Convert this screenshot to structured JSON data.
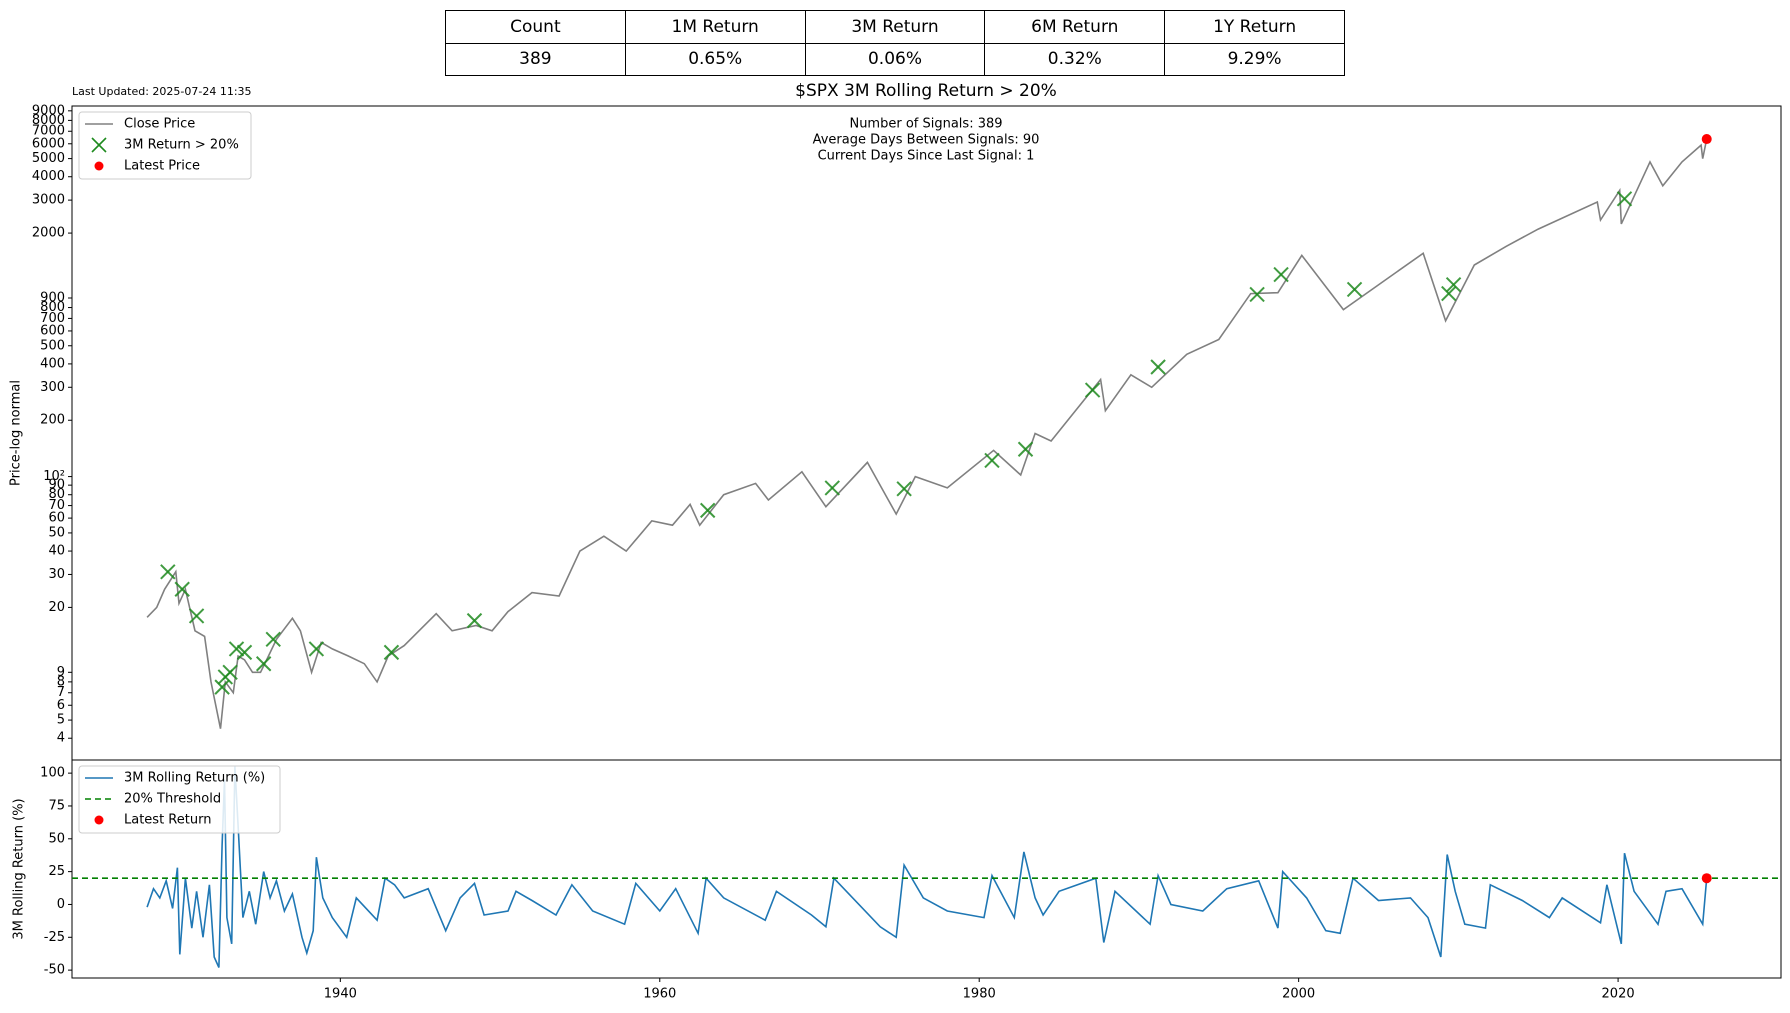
{
  "table": {
    "header": [
      "Count",
      "1M Return",
      "3M Return",
      "6M Return",
      "1Y Return"
    ],
    "rows": [
      [
        "389",
        "0.65%",
        "0.06%",
        "0.32%",
        "9.29%"
      ]
    ]
  },
  "last_updated": "Last Updated: 2025-07-24 11:35",
  "chart_data": [
    {
      "type": "line",
      "title": "$SPX 3M Rolling Return > 20%",
      "annotations": [
        "Number of Signals: 389",
        "Average Days Between Signals: 90",
        "Current Days Since Last Signal: 1"
      ],
      "ylabel": "Price-log normal",
      "y_scale": "log",
      "legend": "upper left",
      "xlim": [
        1923.2,
        2030.2
      ],
      "ylim": [
        3.06,
        9550
      ],
      "yticks": [
        4,
        5,
        6,
        7,
        8,
        9,
        20,
        30,
        40,
        50,
        60,
        70,
        80,
        90,
        {
          "value": 100,
          "label": "10²"
        },
        200,
        300,
        400,
        500,
        600,
        700,
        800,
        900,
        2000,
        3000,
        4000,
        5000,
        6000,
        7000,
        8000,
        9000
      ],
      "series": [
        {
          "name": "Close Price",
          "type": "line",
          "color": "#808080",
          "x": [
            1927.9,
            1928.5,
            1929.0,
            1929.7,
            1929.9,
            1930.3,
            1930.9,
            1931.5,
            1931.9,
            1932.5,
            1932.8,
            1933.3,
            1933.6,
            1934.0,
            1934.5,
            1935.0,
            1935.5,
            1936.0,
            1937.0,
            1937.5,
            1938.2,
            1938.8,
            1939.5,
            1940.5,
            1941.5,
            1942.3,
            1943.0,
            1944.0,
            1946.0,
            1947.0,
            1948.5,
            1949.5,
            1950.5,
            1952.0,
            1953.7,
            1955.0,
            1956.5,
            1957.9,
            1959.5,
            1960.8,
            1961.9,
            1962.5,
            1964.0,
            1966.0,
            1966.8,
            1968.9,
            1970.4,
            1973.0,
            1974.8,
            1976.0,
            1978.0,
            1980.9,
            1982.6,
            1983.5,
            1984.5,
            1987.6,
            1987.9,
            1989.5,
            1990.8,
            1993.0,
            1995.0,
            1997.0,
            1998.7,
            2000.2,
            2002.8,
            2007.8,
            2009.2,
            2011.0,
            2013.0,
            2015.0,
            2018.7,
            2018.9,
            2020.1,
            2020.2,
            2022.0,
            2022.8,
            2024.0,
            2025.2,
            2025.3,
            2025.55
          ],
          "values": [
            17.7,
            20,
            25,
            31,
            21,
            25,
            15,
            14,
            8,
            4.5,
            8,
            7,
            11,
            10.5,
            9,
            9,
            11,
            13.5,
            17.5,
            15,
            9,
            13,
            12,
            11,
            10,
            8,
            11,
            12.5,
            18.5,
            15,
            16,
            15,
            19,
            24,
            23,
            40,
            48,
            40,
            58,
            55,
            71,
            55,
            80,
            92,
            75,
            106,
            69,
            119,
            63,
            100,
            87,
            138,
            102,
            170,
            155,
            330,
            225,
            350,
            300,
            450,
            540,
            950,
            960,
            1520,
            780,
            1560,
            680,
            1350,
            1700,
            2100,
            2930,
            2350,
            3380,
            2240,
            4800,
            3580,
            4800,
            5900,
            5000,
            6360
          ]
        },
        {
          "name": "3M Return > 20%",
          "type": "scatter",
          "marker": "x",
          "color": "#1e8a1e",
          "x": [
            1929.2,
            1930.1,
            1931.0,
            1932.6,
            1932.8,
            1933.1,
            1933.5,
            1934.0,
            1935.2,
            1935.8,
            1938.5,
            1943.2,
            1948.4,
            1963.0,
            1970.8,
            1975.3,
            1980.8,
            1982.9,
            1987.1,
            1991.2,
            1997.4,
            1998.9,
            2003.5,
            2009.4,
            2009.7,
            2020.4
          ],
          "values": [
            31,
            25,
            18,
            7.5,
            8.5,
            9,
            12,
            11.5,
            10,
            13.5,
            12,
            11.5,
            17,
            66,
            87,
            86,
            122,
            140,
            290,
            385,
            940,
            1200,
            1000,
            950,
            1060,
            3050
          ]
        },
        {
          "name": "Latest Price",
          "type": "scatter",
          "marker": "o",
          "color": "#ff0000",
          "x": [
            2025.55
          ],
          "values": [
            6360
          ]
        }
      ]
    },
    {
      "type": "line",
      "ylabel": "3M Rolling Return (%)",
      "legend": "upper left",
      "xlim": [
        1923.2,
        2030.2
      ],
      "ylim": [
        -56,
        110
      ],
      "xticks": [
        1940,
        1960,
        1980,
        2000,
        2020
      ],
      "yticks": [
        -50,
        -25,
        0,
        25,
        50,
        75,
        100
      ],
      "series": [
        {
          "name": "3M Rolling Return (%)",
          "type": "line",
          "color": "#1f77b4",
          "x": [
            1927.9,
            1928.3,
            1928.7,
            1929.1,
            1929.5,
            1929.8,
            1929.95,
            1930.3,
            1930.7,
            1931.0,
            1931.4,
            1931.8,
            1932.1,
            1932.4,
            1932.6,
            1932.75,
            1932.9,
            1933.2,
            1933.4,
            1933.6,
            1933.9,
            1934.3,
            1934.7,
            1935.2,
            1935.6,
            1936.0,
            1936.5,
            1937.0,
            1937.6,
            1937.9,
            1938.3,
            1938.5,
            1938.9,
            1939.5,
            1940.4,
            1941.0,
            1942.3,
            1942.8,
            1943.4,
            1944.0,
            1945.5,
            1946.6,
            1947.5,
            1948.4,
            1949.0,
            1950.5,
            1951.0,
            1952.0,
            1953.5,
            1954.5,
            1955.8,
            1957.8,
            1958.5,
            1960.0,
            1961.0,
            1962.4,
            1962.9,
            1964.0,
            1966.6,
            1967.3,
            1969.5,
            1970.4,
            1970.9,
            1973.8,
            1974.8,
            1975.3,
            1976.5,
            1978.0,
            1980.3,
            1980.8,
            1982.2,
            1982.8,
            1983.5,
            1984.0,
            1985.0,
            1987.3,
            1987.8,
            1988.5,
            1990.7,
            1991.2,
            1992.0,
            1994.0,
            1995.5,
            1997.5,
            1998.7,
            1999.0,
            2000.5,
            2001.7,
            2002.6,
            2003.4,
            2005.0,
            2007.0,
            2008.1,
            2008.9,
            2009.3,
            2009.8,
            2010.4,
            2011.7,
            2012.0,
            2014.0,
            2015.7,
            2016.5,
            2018.9,
            2019.3,
            2020.2,
            2020.4,
            2021.0,
            2022.5,
            2023.0,
            2024.0,
            2025.3,
            2025.55
          ],
          "values": [
            -2,
            12,
            5,
            18,
            -3,
            28,
            -38,
            20,
            -18,
            10,
            -25,
            15,
            -40,
            -48,
            45,
            95,
            -10,
            -30,
            105,
            60,
            -10,
            10,
            -15,
            25,
            5,
            18,
            -5,
            8,
            -25,
            -37,
            -20,
            36,
            5,
            -10,
            -25,
            5,
            -12,
            20,
            15,
            5,
            12,
            -20,
            5,
            16,
            -8,
            -5,
            10,
            3,
            -8,
            15,
            -5,
            -15,
            16,
            -5,
            12,
            -22,
            20,
            5,
            -12,
            10,
            -8,
            -17,
            20,
            -17,
            -25,
            30,
            5,
            -5,
            -10,
            22,
            -10,
            40,
            5,
            -8,
            10,
            20,
            -29,
            10,
            -15,
            22,
            0,
            -5,
            12,
            18,
            -18,
            25,
            5,
            -20,
            -22,
            20,
            3,
            5,
            -10,
            -40,
            38,
            10,
            -15,
            -18,
            15,
            3,
            -10,
            5,
            -14,
            15,
            -30,
            39,
            10,
            -15,
            10,
            12,
            -15,
            20
          ]
        },
        {
          "name": "20% Threshold",
          "type": "hline",
          "color": "#008000",
          "values": [
            20
          ]
        },
        {
          "name": "Latest Return",
          "type": "scatter",
          "marker": "o",
          "color": "#ff0000",
          "x": [
            2025.55
          ],
          "values": [
            20
          ]
        }
      ]
    }
  ]
}
